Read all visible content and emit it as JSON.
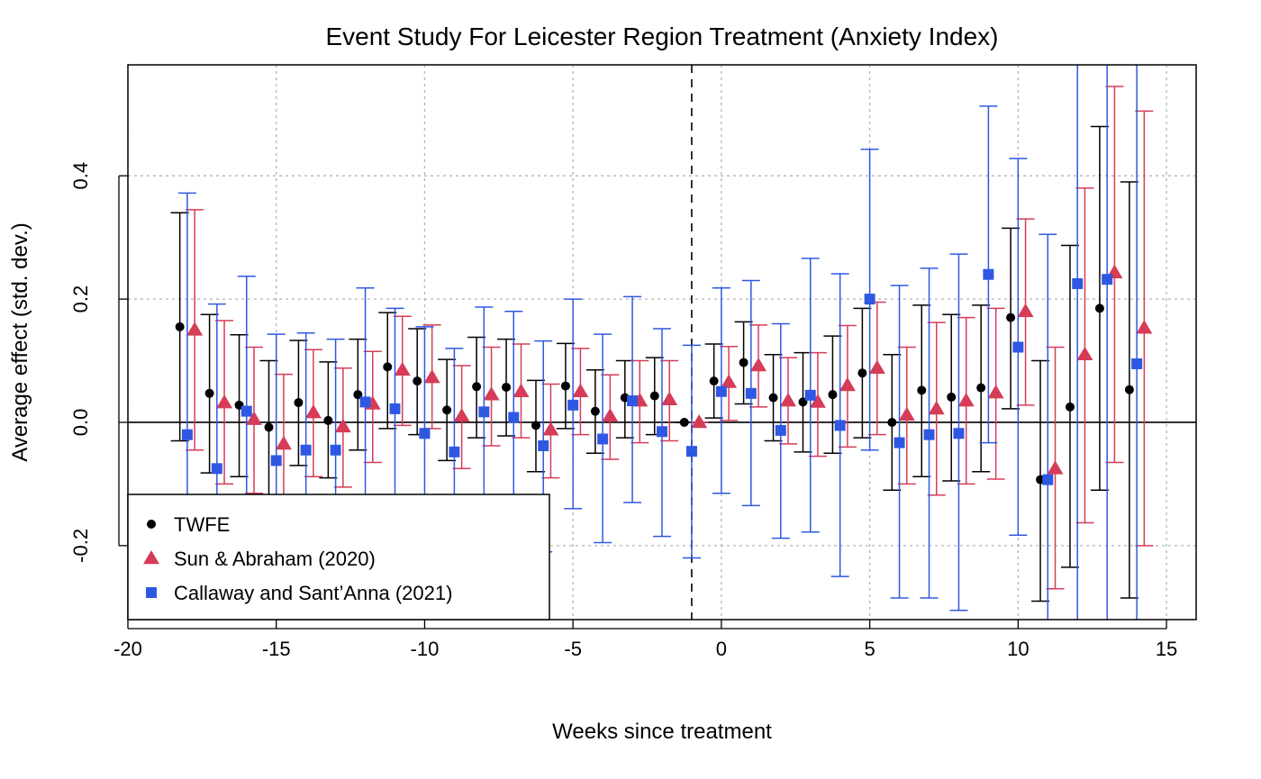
{
  "chart_data": {
    "type": "scatter",
    "title": "Event Study For Leicester Region Treatment (Anxiety Index)",
    "xlabel": "Weeks since treatment",
    "ylabel": "Average effect (std. dev.)",
    "xlim": [
      -20,
      16
    ],
    "ylim": [
      -0.32,
      0.58
    ],
    "x_ticks": [
      "-20",
      "-15",
      "-10",
      "-5",
      "0",
      "5",
      "10",
      "15"
    ],
    "y_ticks": [
      "-0.2",
      "0.0",
      "0.2",
      "0.4"
    ],
    "grid": true,
    "reference_line_x": -1,
    "reference_line_y": 0,
    "legend_position": "bottom-left",
    "series": [
      {
        "name": "TWFE",
        "color": "#000000",
        "marker": "circle",
        "x": [
          -18,
          -17,
          -16,
          -15,
          -14,
          -13,
          -12,
          -11,
          -10,
          -9,
          -8,
          -7,
          -6,
          -5,
          -4,
          -3,
          -2,
          -1,
          0,
          1,
          2,
          3,
          4,
          5,
          6,
          7,
          8,
          9,
          10,
          11,
          12,
          13,
          14
        ],
        "y": [
          0.155,
          0.047,
          0.028,
          -0.008,
          0.032,
          0.003,
          0.045,
          0.09,
          0.067,
          0.02,
          0.058,
          0.057,
          -0.005,
          0.059,
          0.018,
          0.04,
          0.043,
          0.0,
          0.067,
          0.097,
          0.04,
          0.033,
          0.045,
          0.08,
          0.0,
          0.052,
          0.041,
          0.056,
          0.17,
          -0.093,
          0.025,
          0.185,
          0.053
        ],
        "lo": [
          -0.03,
          -0.082,
          -0.088,
          -0.12,
          -0.07,
          -0.09,
          -0.045,
          -0.01,
          -0.02,
          -0.062,
          -0.025,
          -0.022,
          -0.08,
          -0.01,
          -0.05,
          -0.025,
          -0.02,
          0.0,
          0.007,
          0.03,
          -0.03,
          -0.048,
          -0.05,
          -0.025,
          -0.11,
          -0.088,
          -0.095,
          -0.08,
          0.022,
          -0.29,
          -0.235,
          -0.11,
          -0.285
        ],
        "hi": [
          0.34,
          0.175,
          0.142,
          0.1,
          0.133,
          0.098,
          0.135,
          0.178,
          0.152,
          0.102,
          0.138,
          0.135,
          0.068,
          0.128,
          0.085,
          0.1,
          0.105,
          0.0,
          0.127,
          0.163,
          0.11,
          0.113,
          0.14,
          0.185,
          0.11,
          0.19,
          0.175,
          0.19,
          0.315,
          0.1,
          0.287,
          0.48,
          0.39
        ]
      },
      {
        "name": "Sun & Abraham (2020)",
        "color": "#d63c57",
        "marker": "triangle",
        "x": [
          -18,
          -17,
          -16,
          -15,
          -14,
          -13,
          -12,
          -11,
          -10,
          -9,
          -8,
          -7,
          -6,
          -5,
          -4,
          -3,
          -2,
          -1,
          0,
          1,
          2,
          3,
          4,
          5,
          6,
          7,
          8,
          9,
          10,
          11,
          12,
          13,
          14
        ],
        "y": [
          0.15,
          0.032,
          0.005,
          -0.035,
          0.016,
          -0.007,
          0.03,
          0.085,
          0.073,
          0.01,
          0.045,
          0.05,
          -0.012,
          0.05,
          0.01,
          0.035,
          0.037,
          0.0,
          0.065,
          0.092,
          0.035,
          0.033,
          0.06,
          0.088,
          0.012,
          0.022,
          0.035,
          0.048,
          0.18,
          -0.075,
          0.11,
          0.243,
          0.153
        ],
        "lo": [
          -0.045,
          -0.1,
          -0.115,
          -0.16,
          -0.088,
          -0.105,
          -0.065,
          -0.005,
          -0.01,
          -0.075,
          -0.038,
          -0.025,
          -0.09,
          -0.02,
          -0.06,
          -0.033,
          -0.03,
          0.0,
          0.003,
          0.025,
          -0.035,
          -0.055,
          -0.04,
          -0.02,
          -0.1,
          -0.118,
          -0.1,
          -0.092,
          0.028,
          -0.27,
          -0.163,
          -0.065,
          -0.2
        ],
        "hi": [
          0.345,
          0.165,
          0.122,
          0.078,
          0.118,
          0.088,
          0.115,
          0.172,
          0.158,
          0.092,
          0.122,
          0.127,
          0.062,
          0.12,
          0.077,
          0.1,
          0.1,
          0.0,
          0.123,
          0.158,
          0.105,
          0.113,
          0.157,
          0.195,
          0.122,
          0.162,
          0.17,
          0.185,
          0.33,
          0.122,
          0.38,
          0.545,
          0.505
        ]
      },
      {
        "name": "Callaway and Sant’Anna (2021)",
        "color": "#2f58e2",
        "marker": "square",
        "x": [
          -18,
          -17,
          -16,
          -15,
          -14,
          -13,
          -12,
          -11,
          -10,
          -9,
          -8,
          -7,
          -6,
          -5,
          -4,
          -3,
          -2,
          -1,
          0,
          1,
          2,
          3,
          4,
          5,
          6,
          7,
          8,
          9,
          10,
          11,
          12,
          13,
          14
        ],
        "y": [
          -0.02,
          -0.075,
          0.018,
          -0.062,
          -0.045,
          -0.045,
          0.033,
          0.022,
          -0.018,
          -0.048,
          0.017,
          0.008,
          -0.038,
          0.028,
          -0.027,
          0.035,
          -0.015,
          -0.047,
          0.05,
          0.047,
          -0.013,
          0.044,
          -0.005,
          0.2,
          -0.033,
          -0.02,
          -0.018,
          0.24,
          0.122,
          -0.093,
          0.225,
          0.232,
          0.095
        ],
        "lo": [
          -0.4,
          -0.35,
          -0.2,
          -0.26,
          -0.24,
          -0.23,
          -0.15,
          -0.14,
          -0.19,
          -0.21,
          -0.15,
          -0.16,
          -0.21,
          -0.14,
          -0.195,
          -0.13,
          -0.185,
          -0.22,
          -0.115,
          -0.135,
          -0.188,
          -0.178,
          -0.25,
          -0.045,
          -0.285,
          -0.285,
          -0.305,
          -0.033,
          -0.183,
          -0.35,
          -0.35,
          -0.35,
          -0.35
        ],
        "hi": [
          0.372,
          0.192,
          0.237,
          0.143,
          0.145,
          0.135,
          0.218,
          0.185,
          0.155,
          0.12,
          0.187,
          0.18,
          0.132,
          0.2,
          0.143,
          0.204,
          0.152,
          0.125,
          0.218,
          0.23,
          0.16,
          0.266,
          0.241,
          0.443,
          0.222,
          0.25,
          0.273,
          0.513,
          0.428,
          0.305,
          0.65,
          0.65,
          0.65
        ]
      }
    ]
  }
}
